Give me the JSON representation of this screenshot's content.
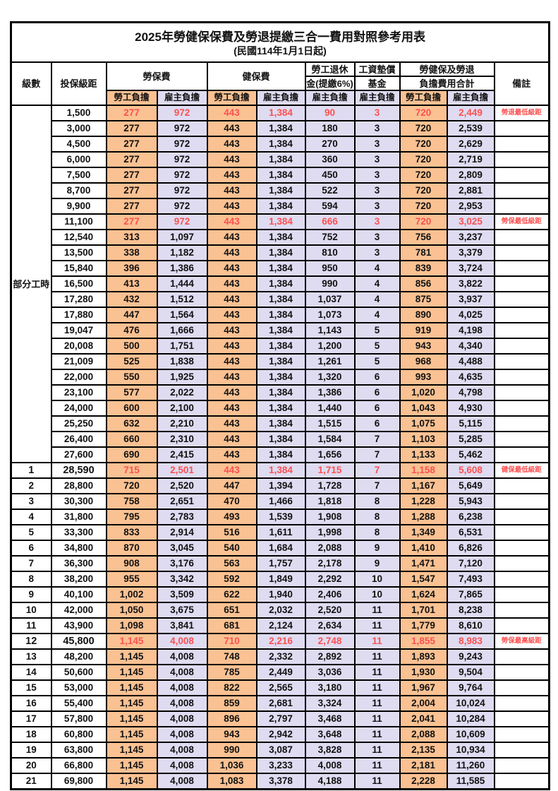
{
  "title": "2025年勞健保保費及勞退提繳三合一費用對照參考用表",
  "subtitle": "(民國114年1月1日起)",
  "header": {
    "level": "級數",
    "bracket": "投保級距",
    "labor_fee": "勞保費",
    "health_fee": "健保費",
    "pension_l1": "勞工退休",
    "pension_l2": "金(提繳6%)",
    "fund_l1": "工資墊償",
    "fund_l2": "基金",
    "total_l1": "勞健保及勞退",
    "total_l2": "負擔費用合計",
    "remark": "備註",
    "employee": "勞工負擔",
    "employer": "雇主負擔"
  },
  "part_time_label": "部分工時",
  "colors": {
    "employee_bg": "#FAC192",
    "employer_bg": "#DFDBF1",
    "highlight_text": "#FB5151",
    "border": "#000000"
  },
  "rows": [
    {
      "level": "",
      "bracket": "1,500",
      "li_emp": "277",
      "li_er": "972",
      "hi_emp": "443",
      "hi_er": "1,384",
      "pension": "90",
      "fund": "3",
      "tot_emp": "720",
      "tot_er": "2,449",
      "remark": "勞退最低級距",
      "red": true,
      "emph": false
    },
    {
      "level": "",
      "bracket": "3,000",
      "li_emp": "277",
      "li_er": "972",
      "hi_emp": "443",
      "hi_er": "1,384",
      "pension": "180",
      "fund": "3",
      "tot_emp": "720",
      "tot_er": "2,539",
      "remark": "",
      "red": false,
      "emph": false
    },
    {
      "level": "",
      "bracket": "4,500",
      "li_emp": "277",
      "li_er": "972",
      "hi_emp": "443",
      "hi_er": "1,384",
      "pension": "270",
      "fund": "3",
      "tot_emp": "720",
      "tot_er": "2,629",
      "remark": "",
      "red": false,
      "emph": false
    },
    {
      "level": "",
      "bracket": "6,000",
      "li_emp": "277",
      "li_er": "972",
      "hi_emp": "443",
      "hi_er": "1,384",
      "pension": "360",
      "fund": "3",
      "tot_emp": "720",
      "tot_er": "2,719",
      "remark": "",
      "red": false,
      "emph": false
    },
    {
      "level": "",
      "bracket": "7,500",
      "li_emp": "277",
      "li_er": "972",
      "hi_emp": "443",
      "hi_er": "1,384",
      "pension": "450",
      "fund": "3",
      "tot_emp": "720",
      "tot_er": "2,809",
      "remark": "",
      "red": false,
      "emph": false
    },
    {
      "level": "",
      "bracket": "8,700",
      "li_emp": "277",
      "li_er": "972",
      "hi_emp": "443",
      "hi_er": "1,384",
      "pension": "522",
      "fund": "3",
      "tot_emp": "720",
      "tot_er": "2,881",
      "remark": "",
      "red": false,
      "emph": false
    },
    {
      "level": "",
      "bracket": "9,900",
      "li_emp": "277",
      "li_er": "972",
      "hi_emp": "443",
      "hi_er": "1,384",
      "pension": "594",
      "fund": "3",
      "tot_emp": "720",
      "tot_er": "2,953",
      "remark": "",
      "red": false,
      "emph": false
    },
    {
      "level": "",
      "bracket": "11,100",
      "li_emp": "277",
      "li_er": "972",
      "hi_emp": "443",
      "hi_er": "1,384",
      "pension": "666",
      "fund": "3",
      "tot_emp": "720",
      "tot_er": "3,025",
      "remark": "勞保最低級距",
      "red": true,
      "emph": false
    },
    {
      "level": "",
      "bracket": "12,540",
      "li_emp": "313",
      "li_er": "1,097",
      "hi_emp": "443",
      "hi_er": "1,384",
      "pension": "752",
      "fund": "3",
      "tot_emp": "756",
      "tot_er": "3,237",
      "remark": "",
      "red": false,
      "emph": false
    },
    {
      "level": "",
      "bracket": "13,500",
      "li_emp": "338",
      "li_er": "1,182",
      "hi_emp": "443",
      "hi_er": "1,384",
      "pension": "810",
      "fund": "3",
      "tot_emp": "781",
      "tot_er": "3,379",
      "remark": "",
      "red": false,
      "emph": false
    },
    {
      "level": "",
      "bracket": "15,840",
      "li_emp": "396",
      "li_er": "1,386",
      "hi_emp": "443",
      "hi_er": "1,384",
      "pension": "950",
      "fund": "4",
      "tot_emp": "839",
      "tot_er": "3,724",
      "remark": "",
      "red": false,
      "emph": false
    },
    {
      "level": "",
      "bracket": "16,500",
      "li_emp": "413",
      "li_er": "1,444",
      "hi_emp": "443",
      "hi_er": "1,384",
      "pension": "990",
      "fund": "4",
      "tot_emp": "856",
      "tot_er": "3,822",
      "remark": "",
      "red": false,
      "emph": false
    },
    {
      "level": "",
      "bracket": "17,280",
      "li_emp": "432",
      "li_er": "1,512",
      "hi_emp": "443",
      "hi_er": "1,384",
      "pension": "1,037",
      "fund": "4",
      "tot_emp": "875",
      "tot_er": "3,937",
      "remark": "",
      "red": false,
      "emph": false
    },
    {
      "level": "",
      "bracket": "17,880",
      "li_emp": "447",
      "li_er": "1,564",
      "hi_emp": "443",
      "hi_er": "1,384",
      "pension": "1,073",
      "fund": "4",
      "tot_emp": "890",
      "tot_er": "4,025",
      "remark": "",
      "red": false,
      "emph": false
    },
    {
      "level": "",
      "bracket": "19,047",
      "li_emp": "476",
      "li_er": "1,666",
      "hi_emp": "443",
      "hi_er": "1,384",
      "pension": "1,143",
      "fund": "5",
      "tot_emp": "919",
      "tot_er": "4,198",
      "remark": "",
      "red": false,
      "emph": false
    },
    {
      "level": "",
      "bracket": "20,008",
      "li_emp": "500",
      "li_er": "1,751",
      "hi_emp": "443",
      "hi_er": "1,384",
      "pension": "1,200",
      "fund": "5",
      "tot_emp": "943",
      "tot_er": "4,340",
      "remark": "",
      "red": false,
      "emph": false
    },
    {
      "level": "",
      "bracket": "21,009",
      "li_emp": "525",
      "li_er": "1,838",
      "hi_emp": "443",
      "hi_er": "1,384",
      "pension": "1,261",
      "fund": "5",
      "tot_emp": "968",
      "tot_er": "4,488",
      "remark": "",
      "red": false,
      "emph": false
    },
    {
      "level": "",
      "bracket": "22,000",
      "li_emp": "550",
      "li_er": "1,925",
      "hi_emp": "443",
      "hi_er": "1,384",
      "pension": "1,320",
      "fund": "6",
      "tot_emp": "993",
      "tot_er": "4,635",
      "remark": "",
      "red": false,
      "emph": false
    },
    {
      "level": "",
      "bracket": "23,100",
      "li_emp": "577",
      "li_er": "2,022",
      "hi_emp": "443",
      "hi_er": "1,384",
      "pension": "1,386",
      "fund": "6",
      "tot_emp": "1,020",
      "tot_er": "4,798",
      "remark": "",
      "red": false,
      "emph": false
    },
    {
      "level": "",
      "bracket": "24,000",
      "li_emp": "600",
      "li_er": "2,100",
      "hi_emp": "443",
      "hi_er": "1,384",
      "pension": "1,440",
      "fund": "6",
      "tot_emp": "1,043",
      "tot_er": "4,930",
      "remark": "",
      "red": false,
      "emph": false
    },
    {
      "level": "",
      "bracket": "25,250",
      "li_emp": "632",
      "li_er": "2,210",
      "hi_emp": "443",
      "hi_er": "1,384",
      "pension": "1,515",
      "fund": "6",
      "tot_emp": "1,075",
      "tot_er": "5,115",
      "remark": "",
      "red": false,
      "emph": false
    },
    {
      "level": "",
      "bracket": "26,400",
      "li_emp": "660",
      "li_er": "2,310",
      "hi_emp": "443",
      "hi_er": "1,384",
      "pension": "1,584",
      "fund": "7",
      "tot_emp": "1,103",
      "tot_er": "5,285",
      "remark": "",
      "red": false,
      "emph": false
    },
    {
      "level": "",
      "bracket": "27,600",
      "li_emp": "690",
      "li_er": "2,415",
      "hi_emp": "443",
      "hi_er": "1,384",
      "pension": "1,656",
      "fund": "7",
      "tot_emp": "1,133",
      "tot_er": "5,462",
      "remark": "",
      "red": false,
      "emph": false
    },
    {
      "level": "1",
      "bracket": "28,590",
      "li_emp": "715",
      "li_er": "2,501",
      "hi_emp": "443",
      "hi_er": "1,384",
      "pension": "1,715",
      "fund": "7",
      "tot_emp": "1,158",
      "tot_er": "5,608",
      "remark": "健保最低級距",
      "red": true,
      "emph": true
    },
    {
      "level": "2",
      "bracket": "28,800",
      "li_emp": "720",
      "li_er": "2,520",
      "hi_emp": "447",
      "hi_er": "1,394",
      "pension": "1,728",
      "fund": "7",
      "tot_emp": "1,167",
      "tot_er": "5,649",
      "remark": "",
      "red": false,
      "emph": false
    },
    {
      "level": "3",
      "bracket": "30,300",
      "li_emp": "758",
      "li_er": "2,651",
      "hi_emp": "470",
      "hi_er": "1,466",
      "pension": "1,818",
      "fund": "8",
      "tot_emp": "1,228",
      "tot_er": "5,943",
      "remark": "",
      "red": false,
      "emph": false
    },
    {
      "level": "4",
      "bracket": "31,800",
      "li_emp": "795",
      "li_er": "2,783",
      "hi_emp": "493",
      "hi_er": "1,539",
      "pension": "1,908",
      "fund": "8",
      "tot_emp": "1,288",
      "tot_er": "6,238",
      "remark": "",
      "red": false,
      "emph": false
    },
    {
      "level": "5",
      "bracket": "33,300",
      "li_emp": "833",
      "li_er": "2,914",
      "hi_emp": "516",
      "hi_er": "1,611",
      "pension": "1,998",
      "fund": "8",
      "tot_emp": "1,349",
      "tot_er": "6,531",
      "remark": "",
      "red": false,
      "emph": false
    },
    {
      "level": "6",
      "bracket": "34,800",
      "li_emp": "870",
      "li_er": "3,045",
      "hi_emp": "540",
      "hi_er": "1,684",
      "pension": "2,088",
      "fund": "9",
      "tot_emp": "1,410",
      "tot_er": "6,826",
      "remark": "",
      "red": false,
      "emph": false
    },
    {
      "level": "7",
      "bracket": "36,300",
      "li_emp": "908",
      "li_er": "3,176",
      "hi_emp": "563",
      "hi_er": "1,757",
      "pension": "2,178",
      "fund": "9",
      "tot_emp": "1,471",
      "tot_er": "7,120",
      "remark": "",
      "red": false,
      "emph": false
    },
    {
      "level": "8",
      "bracket": "38,200",
      "li_emp": "955",
      "li_er": "3,342",
      "hi_emp": "592",
      "hi_er": "1,849",
      "pension": "2,292",
      "fund": "10",
      "tot_emp": "1,547",
      "tot_er": "7,493",
      "remark": "",
      "red": false,
      "emph": false
    },
    {
      "level": "9",
      "bracket": "40,100",
      "li_emp": "1,002",
      "li_er": "3,509",
      "hi_emp": "622",
      "hi_er": "1,940",
      "pension": "2,406",
      "fund": "10",
      "tot_emp": "1,624",
      "tot_er": "7,865",
      "remark": "",
      "red": false,
      "emph": false
    },
    {
      "level": "10",
      "bracket": "42,000",
      "li_emp": "1,050",
      "li_er": "3,675",
      "hi_emp": "651",
      "hi_er": "2,032",
      "pension": "2,520",
      "fund": "11",
      "tot_emp": "1,701",
      "tot_er": "8,238",
      "remark": "",
      "red": false,
      "emph": false
    },
    {
      "level": "11",
      "bracket": "43,900",
      "li_emp": "1,098",
      "li_er": "3,841",
      "hi_emp": "681",
      "hi_er": "2,124",
      "pension": "2,634",
      "fund": "11",
      "tot_emp": "1,779",
      "tot_er": "8,610",
      "remark": "",
      "red": false,
      "emph": false
    },
    {
      "level": "12",
      "bracket": "45,800",
      "li_emp": "1,145",
      "li_er": "4,008",
      "hi_emp": "710",
      "hi_er": "2,216",
      "pension": "2,748",
      "fund": "11",
      "tot_emp": "1,855",
      "tot_er": "8,983",
      "remark": "勞保最高級距",
      "red": true,
      "emph": true
    },
    {
      "level": "13",
      "bracket": "48,200",
      "li_emp": "1,145",
      "li_er": "4,008",
      "hi_emp": "748",
      "hi_er": "2,332",
      "pension": "2,892",
      "fund": "11",
      "tot_emp": "1,893",
      "tot_er": "9,243",
      "remark": "",
      "red": false,
      "emph": false
    },
    {
      "level": "14",
      "bracket": "50,600",
      "li_emp": "1,145",
      "li_er": "4,008",
      "hi_emp": "785",
      "hi_er": "2,449",
      "pension": "3,036",
      "fund": "11",
      "tot_emp": "1,930",
      "tot_er": "9,504",
      "remark": "",
      "red": false,
      "emph": false
    },
    {
      "level": "15",
      "bracket": "53,000",
      "li_emp": "1,145",
      "li_er": "4,008",
      "hi_emp": "822",
      "hi_er": "2,565",
      "pension": "3,180",
      "fund": "11",
      "tot_emp": "1,967",
      "tot_er": "9,764",
      "remark": "",
      "red": false,
      "emph": false
    },
    {
      "level": "16",
      "bracket": "55,400",
      "li_emp": "1,145",
      "li_er": "4,008",
      "hi_emp": "859",
      "hi_er": "2,681",
      "pension": "3,324",
      "fund": "11",
      "tot_emp": "2,004",
      "tot_er": "10,024",
      "remark": "",
      "red": false,
      "emph": false
    },
    {
      "level": "17",
      "bracket": "57,800",
      "li_emp": "1,145",
      "li_er": "4,008",
      "hi_emp": "896",
      "hi_er": "2,797",
      "pension": "3,468",
      "fund": "11",
      "tot_emp": "2,041",
      "tot_er": "10,284",
      "remark": "",
      "red": false,
      "emph": false
    },
    {
      "level": "18",
      "bracket": "60,800",
      "li_emp": "1,145",
      "li_er": "4,008",
      "hi_emp": "943",
      "hi_er": "2,942",
      "pension": "3,648",
      "fund": "11",
      "tot_emp": "2,088",
      "tot_er": "10,609",
      "remark": "",
      "red": false,
      "emph": false
    },
    {
      "level": "19",
      "bracket": "63,800",
      "li_emp": "1,145",
      "li_er": "4,008",
      "hi_emp": "990",
      "hi_er": "3,087",
      "pension": "3,828",
      "fund": "11",
      "tot_emp": "2,135",
      "tot_er": "10,934",
      "remark": "",
      "red": false,
      "emph": false
    },
    {
      "level": "20",
      "bracket": "66,800",
      "li_emp": "1,145",
      "li_er": "4,008",
      "hi_emp": "1,036",
      "hi_er": "3,233",
      "pension": "4,008",
      "fund": "11",
      "tot_emp": "2,181",
      "tot_er": "11,260",
      "remark": "",
      "red": false,
      "emph": false
    },
    {
      "level": "21",
      "bracket": "69,800",
      "li_emp": "1,145",
      "li_er": "4,008",
      "hi_emp": "1,083",
      "hi_er": "3,378",
      "pension": "4,188",
      "fund": "11",
      "tot_emp": "2,228",
      "tot_er": "11,585",
      "remark": "",
      "red": false,
      "emph": false
    }
  ]
}
